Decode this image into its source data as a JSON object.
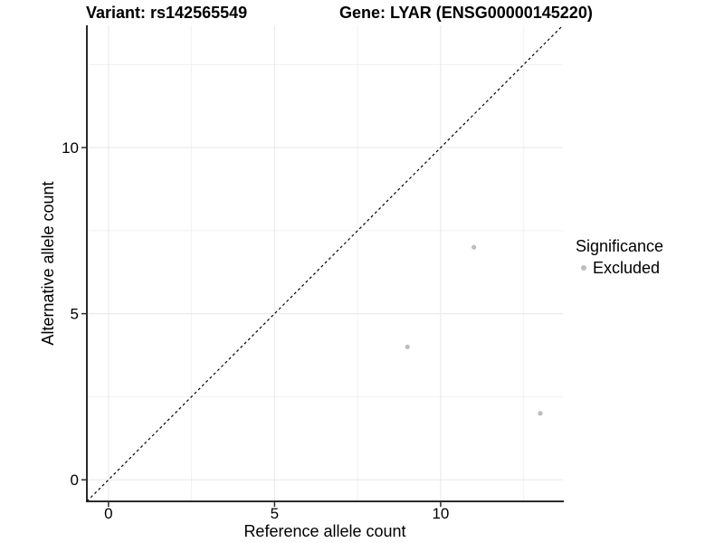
{
  "chart_data": {
    "type": "scatter",
    "title_left": "Variant: rs142565549",
    "title_right": "Gene: LYAR (ENSG00000145220)",
    "xlabel": "Reference allele count",
    "ylabel": "Alternative allele count",
    "xlim": [
      -0.65,
      13.68
    ],
    "ylim": [
      -0.65,
      13.68
    ],
    "x_ticks": [
      0,
      5,
      10
    ],
    "y_ticks": [
      0,
      5,
      10
    ],
    "x_minor_ticks": [
      2.5,
      7.5,
      12.5
    ],
    "y_minor_ticks": [
      2.5,
      7.5,
      12.5
    ],
    "grid": true,
    "identity_line": {
      "style": "dashed",
      "slope": 1,
      "intercept": 0,
      "color": "#000000"
    },
    "series": [
      {
        "name": "Excluded",
        "color": "#bdbdbd",
        "points": [
          [
            9,
            4
          ],
          [
            11,
            7
          ],
          [
            13,
            2
          ]
        ]
      }
    ],
    "legend": {
      "title": "Significance",
      "position": "right",
      "items": [
        {
          "label": "Excluded",
          "color": "#bdbdbd"
        }
      ]
    },
    "colors": {
      "axis_line": "#2b2b2b",
      "grid_major": "#e7e7e7",
      "grid_minor": "#f1f1f1",
      "text": "#000000",
      "background": "#ffffff"
    }
  }
}
